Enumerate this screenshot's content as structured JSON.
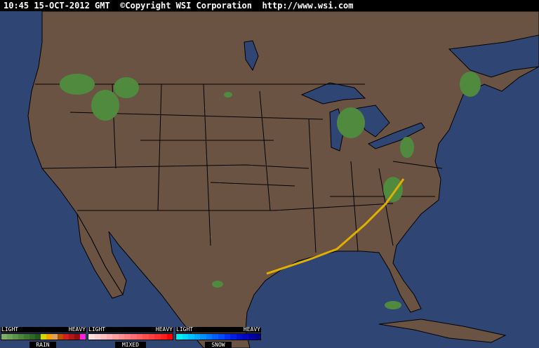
{
  "header": {
    "text": "10:45 15-OCT-2012 GMT  ©Copyright WSI Corporation  http://www.wsi.com"
  },
  "colors": {
    "ocean": "#2f4675",
    "land": "#6b5343",
    "borders": "#000000",
    "rain": "#4f8a3e"
  },
  "legends": [
    {
      "light": "LIGHT",
      "heavy": "HEAVY",
      "name": "RAIN",
      "swatches": [
        "#7fb068",
        "#6ea25a",
        "#5c934c",
        "#4c843f",
        "#3e7533",
        "#306627",
        "#22571c",
        "#d6d600",
        "#f0a800",
        "#e0a060",
        "#b85000",
        "#d02020",
        "#b01818",
        "#901010",
        "#ff20e0"
      ]
    },
    {
      "light": "LIGHT",
      "heavy": "HEAVY",
      "name": "MIXED",
      "swatches": [
        "#ffe0e0",
        "#ffd0d0",
        "#ffc0c0",
        "#ffb0b0",
        "#ffa0a0",
        "#ff9090",
        "#ff8080",
        "#ff7070",
        "#ff6060",
        "#ff5050",
        "#ff4040",
        "#ff3030",
        "#ff2020",
        "#ff0000"
      ]
    },
    {
      "light": "LIGHT",
      "heavy": "HEAVY",
      "name": "SNOW",
      "swatches": [
        "#00f0f0",
        "#00d8f8",
        "#00c0ff",
        "#00a8ff",
        "#0090ff",
        "#0078ff",
        "#0060ff",
        "#0048f8",
        "#0030f0",
        "#0020e0",
        "#0010d0",
        "#0008c0",
        "#0000a8",
        "#000090"
      ]
    }
  ]
}
